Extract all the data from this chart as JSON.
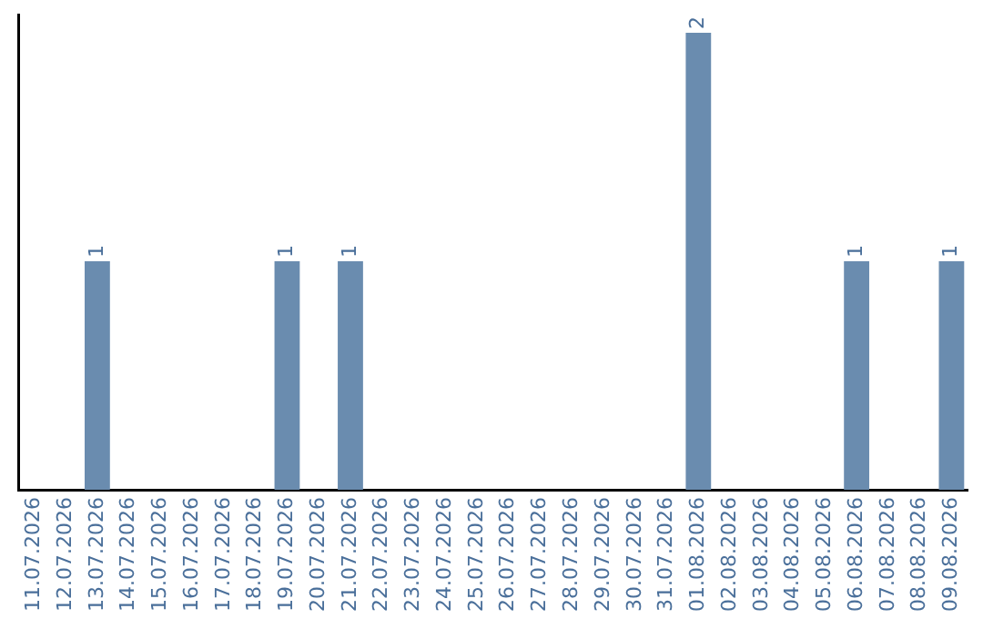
{
  "chart_data": {
    "type": "bar",
    "categories": [
      "11.07.2026",
      "12.07.2026",
      "13.07.2026",
      "14.07.2026",
      "15.07.2026",
      "16.07.2026",
      "17.07.2026",
      "18.07.2026",
      "19.07.2026",
      "20.07.2026",
      "21.07.2026",
      "22.07.2026",
      "23.07.2026",
      "24.07.2026",
      "25.07.2026",
      "26.07.2026",
      "27.07.2026",
      "28.07.2026",
      "29.07.2026",
      "30.07.2026",
      "31.07.2026",
      "01.08.2026",
      "02.08.2026",
      "03.08.2026",
      "04.08.2026",
      "05.08.2026",
      "06.08.2026",
      "07.08.2026",
      "08.08.2026",
      "09.08.2026"
    ],
    "values": [
      0,
      0,
      1,
      0,
      0,
      0,
      0,
      0,
      1,
      0,
      1,
      0,
      0,
      0,
      0,
      0,
      0,
      0,
      0,
      0,
      0,
      2,
      0,
      0,
      0,
      0,
      1,
      0,
      0,
      1
    ],
    "value_labels": [
      null,
      null,
      "1",
      null,
      null,
      null,
      null,
      null,
      "1",
      null,
      "1",
      null,
      null,
      null,
      null,
      null,
      null,
      null,
      null,
      null,
      null,
      "2",
      null,
      null,
      null,
      null,
      "1",
      null,
      null,
      "1"
    ],
    "color": "#6a8caf",
    "ylim": [
      0,
      2.08
    ],
    "tick_labels": "x",
    "grid": false,
    "legend": false
  }
}
